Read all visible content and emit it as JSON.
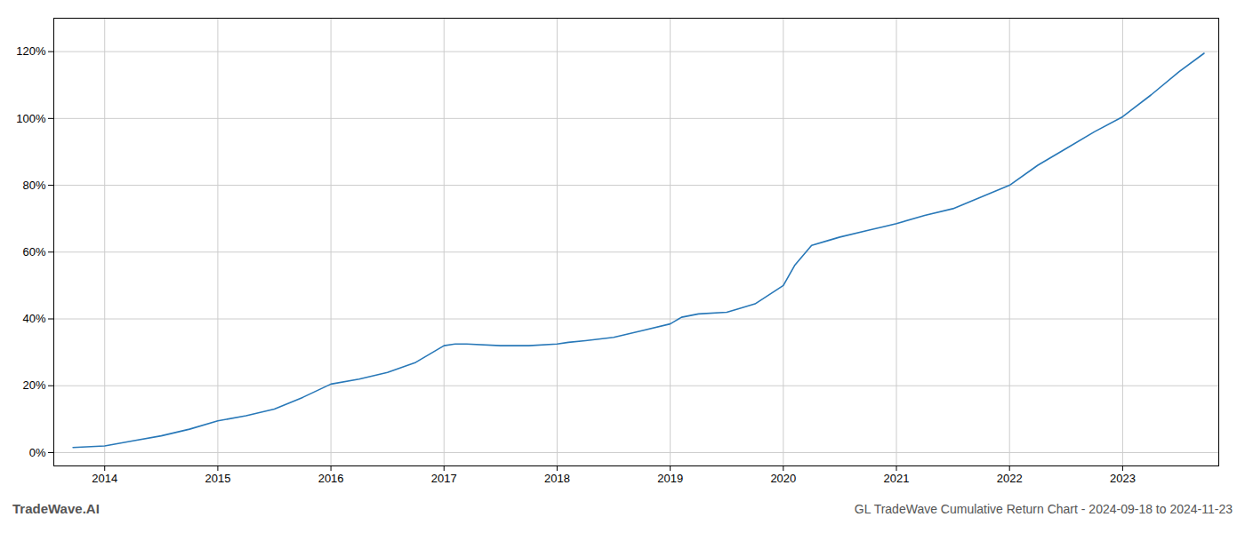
{
  "chart_data": {
    "type": "line",
    "title": "GL TradeWave Cumulative Return Chart - 2024-09-18 to 2024-11-23",
    "annotations": [
      "TradeWave.AI"
    ],
    "x": [
      2013.72,
      2014.0,
      2014.25,
      2014.5,
      2014.75,
      2015.0,
      2015.25,
      2015.5,
      2015.75,
      2016.0,
      2016.25,
      2016.5,
      2016.75,
      2017.0,
      2017.1,
      2017.2,
      2017.5,
      2017.75,
      2018.0,
      2018.1,
      2018.25,
      2018.5,
      2018.75,
      2019.0,
      2019.05,
      2019.1,
      2019.25,
      2019.5,
      2019.6,
      2019.75,
      2020.0,
      2020.1,
      2020.25,
      2020.4,
      2020.5,
      2020.75,
      2021.0,
      2021.25,
      2021.5,
      2021.75,
      2022.0,
      2022.25,
      2022.5,
      2022.75,
      2023.0,
      2023.25,
      2023.5,
      2023.72
    ],
    "values": [
      1.5,
      2.0,
      3.5,
      5.0,
      7.0,
      9.5,
      11.0,
      13.0,
      16.5,
      20.5,
      22.0,
      24.0,
      27.0,
      32.0,
      32.5,
      32.5,
      32.0,
      32.0,
      32.5,
      33.0,
      33.5,
      34.5,
      36.5,
      38.5,
      39.5,
      40.5,
      41.5,
      42.0,
      43.0,
      44.5,
      50.0,
      56.0,
      62.0,
      63.5,
      64.5,
      66.5,
      68.5,
      71.0,
      73.0,
      76.5,
      80.0,
      86.0,
      91.0,
      96.0,
      100.5,
      107.0,
      114.0,
      119.5
    ],
    "color": "#2878b8",
    "xlim": [
      2013.55,
      2023.85
    ],
    "xticks": [
      2014,
      2015,
      2016,
      2017,
      2018,
      2019,
      2020,
      2021,
      2022,
      2023
    ],
    "ylim": [
      -4,
      130
    ],
    "yticks": [
      {
        "value": 0,
        "label": "0%"
      },
      {
        "value": 20,
        "label": "20%"
      },
      {
        "value": 40,
        "label": "40%"
      },
      {
        "value": 60,
        "label": "60%"
      },
      {
        "value": 80,
        "label": "80%"
      },
      {
        "value": 100,
        "label": "100%"
      },
      {
        "value": 120,
        "label": "120%"
      }
    ],
    "grid": true
  }
}
